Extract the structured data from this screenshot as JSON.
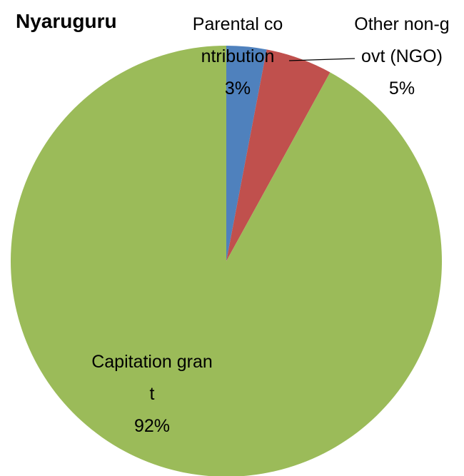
{
  "chart_data": {
    "type": "pie",
    "title": "Nyaruguru",
    "categories": [
      "Parental contribution",
      "Other non-govt (NGO)",
      "Capitation grant"
    ],
    "values": [
      3,
      5,
      92
    ],
    "value_labels": [
      "3%",
      "5%",
      "92%"
    ],
    "colors": [
      "#4f81bd",
      "#c0504d",
      "#9bbb59"
    ]
  }
}
